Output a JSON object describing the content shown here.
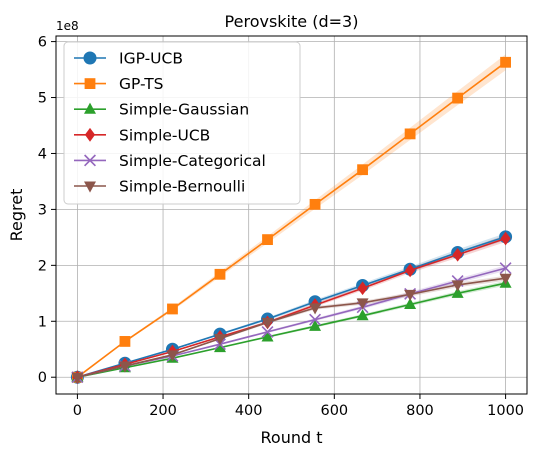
{
  "chart_data": {
    "type": "line",
    "title": "Perovskite (d=3)",
    "xlabel": "Round t",
    "ylabel": "Regret",
    "y_offset_label": "1e8",
    "xlim": [
      -50,
      1050
    ],
    "ylim": [
      -0.3,
      6.1
    ],
    "x_ticks": [
      0,
      200,
      400,
      600,
      800,
      1000
    ],
    "y_ticks": [
      0,
      1,
      2,
      3,
      4,
      5,
      6
    ],
    "grid": true,
    "legend_position": "top-left",
    "x": [
      0,
      111,
      222,
      333,
      444,
      555,
      666,
      777,
      888,
      1000
    ],
    "series": [
      {
        "name": "IGP-UCB",
        "color": "#1f77b4",
        "marker": "circle",
        "values": [
          0,
          0.25,
          0.5,
          0.77,
          1.04,
          1.35,
          1.64,
          1.93,
          2.23,
          2.51
        ]
      },
      {
        "name": "GP-TS",
        "color": "#ff7f0e",
        "marker": "square",
        "values": [
          0,
          0.64,
          1.22,
          1.84,
          2.46,
          3.09,
          3.71,
          4.35,
          4.99,
          5.63
        ]
      },
      {
        "name": "Simple-Gaussian",
        "color": "#2ca02c",
        "marker": "triangle-up",
        "values": [
          0,
          0.17,
          0.34,
          0.53,
          0.72,
          0.91,
          1.1,
          1.3,
          1.5,
          1.68
        ]
      },
      {
        "name": "Simple-UCB",
        "color": "#d62728",
        "marker": "diamond",
        "values": [
          0,
          0.23,
          0.46,
          0.72,
          0.98,
          1.29,
          1.59,
          1.91,
          2.19,
          2.48
        ]
      },
      {
        "name": "Simple-Categorical",
        "color": "#9467bd",
        "marker": "x",
        "values": [
          0,
          0.2,
          0.38,
          0.59,
          0.81,
          1.03,
          1.25,
          1.49,
          1.72,
          1.95
        ]
      },
      {
        "name": "Simple-Bernoulli",
        "color": "#8c564b",
        "marker": "triangle-down",
        "values": [
          0,
          0.2,
          0.4,
          0.69,
          0.98,
          1.24,
          1.33,
          1.48,
          1.65,
          1.77
        ]
      }
    ]
  }
}
